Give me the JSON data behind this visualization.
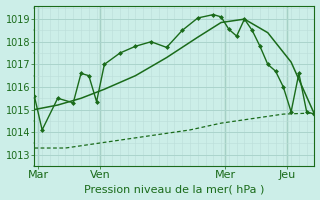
{
  "title": "Pression niveau de la mer( hPa )",
  "background_color": "#cceee8",
  "grid_major_color": "#aad4cc",
  "grid_minor_color": "#bbddd8",
  "line_color": "#1a6b1a",
  "ylim": [
    1012.5,
    1019.6
  ],
  "yticks": [
    1013,
    1014,
    1015,
    1016,
    1017,
    1018,
    1019
  ],
  "day_labels": [
    "Mar",
    "Ven",
    "Mer",
    "Jeu"
  ],
  "day_positions": [
    0.5,
    8.5,
    24.5,
    32.5
  ],
  "vline_positions": [
    0.5,
    8.5,
    24.5,
    32.5
  ],
  "xlim": [
    0,
    36
  ],
  "line1_x": [
    0,
    1,
    3,
    5,
    6,
    7,
    8,
    9,
    11,
    13,
    15,
    17,
    19,
    21,
    23,
    24,
    25,
    26,
    27,
    28,
    29,
    30,
    31,
    32,
    33,
    34,
    35,
    36
  ],
  "line1_y": [
    1015.6,
    1014.1,
    1015.5,
    1015.3,
    1016.6,
    1016.5,
    1015.35,
    1017.0,
    1017.5,
    1017.8,
    1018.0,
    1017.75,
    1018.5,
    1019.05,
    1019.2,
    1019.1,
    1018.55,
    1018.25,
    1019.0,
    1018.5,
    1017.8,
    1017.0,
    1016.7,
    1016.0,
    1014.9,
    1016.6,
    1014.9,
    1014.8
  ],
  "line2_x": [
    0,
    3,
    6,
    9,
    13,
    17,
    21,
    24,
    27,
    30,
    33,
    36
  ],
  "line2_y": [
    1015.0,
    1015.2,
    1015.5,
    1015.9,
    1016.5,
    1017.3,
    1018.2,
    1018.85,
    1019.0,
    1018.4,
    1017.1,
    1014.8
  ],
  "line3_x": [
    0,
    4,
    8,
    12,
    16,
    20,
    24,
    28,
    32,
    36
  ],
  "line3_y": [
    1013.3,
    1013.3,
    1013.5,
    1013.7,
    1013.9,
    1014.1,
    1014.4,
    1014.6,
    1014.8,
    1014.85
  ],
  "marker_size": 2.5,
  "xlabel_fontsize": 8,
  "ylabel_fontsize": 7,
  "tick_label_color": "#1a6b1a"
}
